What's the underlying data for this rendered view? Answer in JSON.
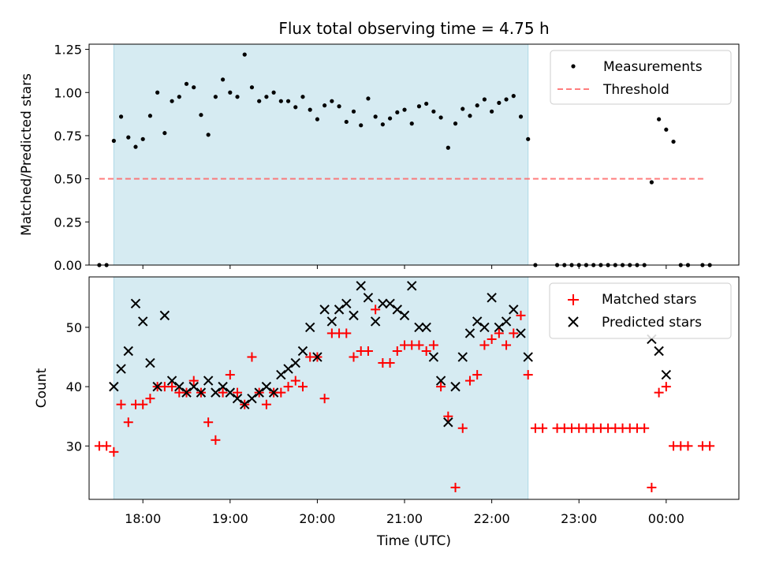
{
  "chart_data": [
    {
      "type": "scatter",
      "title": "Flux total observing time = 4.75 h",
      "ylabel": "Matched/Predicted stars",
      "xlabel": "",
      "xlim": [
        "17:23",
        "00:50"
      ],
      "ylim": [
        0,
        1.28
      ],
      "y_ticks": [
        "0.00",
        "0.25",
        "0.50",
        "0.75",
        "1.00",
        "1.25"
      ],
      "x_ticks": [
        "18:00",
        "19:00",
        "20:00",
        "21:00",
        "22:00",
        "23:00",
        "00:00"
      ],
      "shaded_region": [
        "17:40",
        "22:25"
      ],
      "legend_position": "top-right",
      "threshold": {
        "name": "Threshold",
        "y": 0.5,
        "x_range": [
          "17:30",
          "00:27"
        ],
        "color": "#ff6666"
      },
      "series": [
        {
          "name": "Measurements",
          "color": "#000000",
          "marker": "dot",
          "points": [
            [
              "17:30",
              0.0
            ],
            [
              "17:35",
              0.0
            ],
            [
              "17:40",
              0.72
            ],
            [
              "17:45",
              0.86
            ],
            [
              "17:50",
              0.74
            ],
            [
              "17:55",
              0.685
            ],
            [
              "18:00",
              0.73
            ],
            [
              "18:05",
              0.865
            ],
            [
              "18:10",
              1.0
            ],
            [
              "18:15",
              0.765
            ],
            [
              "18:20",
              0.95
            ],
            [
              "18:25",
              0.975
            ],
            [
              "18:30",
              1.05
            ],
            [
              "18:35",
              1.03
            ],
            [
              "18:40",
              0.87
            ],
            [
              "18:45",
              0.755
            ],
            [
              "18:50",
              0.975
            ],
            [
              "18:55",
              1.075
            ],
            [
              "19:00",
              1.0
            ],
            [
              "19:05",
              0.975
            ],
            [
              "19:10",
              1.22
            ],
            [
              "19:15",
              1.03
            ],
            [
              "19:20",
              0.95
            ],
            [
              "19:25",
              0.975
            ],
            [
              "19:30",
              1.0
            ],
            [
              "19:35",
              0.95
            ],
            [
              "19:40",
              0.95
            ],
            [
              "19:45",
              0.915
            ],
            [
              "19:50",
              0.975
            ],
            [
              "19:55",
              0.9
            ],
            [
              "20:00",
              0.845
            ],
            [
              "20:05",
              0.925
            ],
            [
              "20:10",
              0.95
            ],
            [
              "20:15",
              0.92
            ],
            [
              "20:20",
              0.83
            ],
            [
              "20:25",
              0.89
            ],
            [
              "20:30",
              0.81
            ],
            [
              "20:35",
              0.965
            ],
            [
              "20:40",
              0.86
            ],
            [
              "20:45",
              0.815
            ],
            [
              "20:50",
              0.85
            ],
            [
              "20:55",
              0.885
            ],
            [
              "21:00",
              0.9
            ],
            [
              "21:05",
              0.82
            ],
            [
              "21:10",
              0.92
            ],
            [
              "21:15",
              0.935
            ],
            [
              "21:20",
              0.89
            ],
            [
              "21:25",
              0.855
            ],
            [
              "21:30",
              0.68
            ],
            [
              "21:35",
              0.82
            ],
            [
              "21:40",
              0.905
            ],
            [
              "21:45",
              0.865
            ],
            [
              "21:50",
              0.925
            ],
            [
              "21:55",
              0.96
            ],
            [
              "22:00",
              0.89
            ],
            [
              "22:05",
              0.94
            ],
            [
              "22:10",
              0.96
            ],
            [
              "22:15",
              0.98
            ],
            [
              "22:20",
              0.86
            ],
            [
              "22:25",
              0.73
            ],
            [
              "22:30",
              0.0
            ],
            [
              "22:45",
              0.0
            ],
            [
              "22:50",
              0.0
            ],
            [
              "22:55",
              0.0
            ],
            [
              "23:00",
              0.0
            ],
            [
              "23:05",
              0.0
            ],
            [
              "23:10",
              0.0
            ],
            [
              "23:15",
              0.0
            ],
            [
              "23:20",
              0.0
            ],
            [
              "23:25",
              0.0
            ],
            [
              "23:30",
              0.0
            ],
            [
              "23:35",
              0.0
            ],
            [
              "23:40",
              0.0
            ],
            [
              "23:45",
              0.0
            ],
            [
              "23:50",
              0.48
            ],
            [
              "23:55",
              0.845
            ],
            [
              "00:00",
              0.785
            ],
            [
              "00:05",
              0.715
            ],
            [
              "00:10",
              0.0
            ],
            [
              "00:15",
              0.0
            ],
            [
              "00:25",
              0.0
            ],
            [
              "00:30",
              0.0
            ]
          ]
        }
      ]
    },
    {
      "type": "scatter",
      "title": "",
      "ylabel": "Count",
      "xlabel": "Time (UTC)",
      "xlim": [
        "17:23",
        "00:50"
      ],
      "ylim": [
        21,
        58.5
      ],
      "y_ticks": [
        "30",
        "40",
        "50"
      ],
      "x_ticks": [
        "18:00",
        "19:00",
        "20:00",
        "21:00",
        "22:00",
        "23:00",
        "00:00"
      ],
      "shaded_region": [
        "17:40",
        "22:25"
      ],
      "legend_position": "top-right",
      "series": [
        {
          "name": "Matched stars",
          "color": "#ff0000",
          "marker": "plus",
          "points": [
            [
              "17:30",
              30
            ],
            [
              "17:35",
              30
            ],
            [
              "17:40",
              29
            ],
            [
              "17:45",
              37
            ],
            [
              "17:50",
              34
            ],
            [
              "17:55",
              37
            ],
            [
              "18:00",
              37
            ],
            [
              "18:05",
              38
            ],
            [
              "18:10",
              40
            ],
            [
              "18:15",
              40
            ],
            [
              "18:20",
              40
            ],
            [
              "18:25",
              39
            ],
            [
              "18:30",
              39
            ],
            [
              "18:35",
              41
            ],
            [
              "18:40",
              39
            ],
            [
              "18:45",
              34
            ],
            [
              "18:50",
              31
            ],
            [
              "18:55",
              39
            ],
            [
              "19:00",
              42
            ],
            [
              "19:05",
              39
            ],
            [
              "19:10",
              37
            ],
            [
              "19:15",
              45
            ],
            [
              "19:20",
              39
            ],
            [
              "19:25",
              37
            ],
            [
              "19:30",
              39
            ],
            [
              "19:35",
              39
            ],
            [
              "19:40",
              40
            ],
            [
              "19:45",
              41
            ],
            [
              "19:50",
              40
            ],
            [
              "19:55",
              45
            ],
            [
              "20:00",
              45
            ],
            [
              "20:05",
              38
            ],
            [
              "20:10",
              49
            ],
            [
              "20:15",
              49
            ],
            [
              "20:20",
              49
            ],
            [
              "20:25",
              45
            ],
            [
              "20:30",
              46
            ],
            [
              "20:35",
              46
            ],
            [
              "20:40",
              53
            ],
            [
              "20:45",
              44
            ],
            [
              "20:50",
              44
            ],
            [
              "20:55",
              46
            ],
            [
              "21:00",
              47
            ],
            [
              "21:05",
              47
            ],
            [
              "21:10",
              47
            ],
            [
              "21:15",
              46
            ],
            [
              "21:20",
              47
            ],
            [
              "21:25",
              40
            ],
            [
              "21:30",
              35
            ],
            [
              "21:35",
              23
            ],
            [
              "21:40",
              33
            ],
            [
              "21:45",
              41
            ],
            [
              "21:50",
              42
            ],
            [
              "21:55",
              47
            ],
            [
              "22:00",
              48
            ],
            [
              "22:05",
              49
            ],
            [
              "22:10",
              47
            ],
            [
              "22:15",
              49
            ],
            [
              "22:20",
              52
            ],
            [
              "22:25",
              42
            ],
            [
              "22:30",
              33
            ],
            [
              "22:35",
              33
            ],
            [
              "22:45",
              33
            ],
            [
              "22:50",
              33
            ],
            [
              "22:55",
              33
            ],
            [
              "23:00",
              33
            ],
            [
              "23:05",
              33
            ],
            [
              "23:10",
              33
            ],
            [
              "23:15",
              33
            ],
            [
              "23:20",
              33
            ],
            [
              "23:25",
              33
            ],
            [
              "23:30",
              33
            ],
            [
              "23:35",
              33
            ],
            [
              "23:40",
              33
            ],
            [
              "23:45",
              33
            ],
            [
              "23:50",
              23
            ],
            [
              "23:55",
              39
            ],
            [
              "00:00",
              40
            ],
            [
              "00:05",
              30
            ],
            [
              "00:10",
              30
            ],
            [
              "00:15",
              30
            ],
            [
              "00:25",
              30
            ],
            [
              "00:30",
              30
            ]
          ]
        },
        {
          "name": "Predicted stars",
          "color": "#000000",
          "marker": "x",
          "points": [
            [
              "17:40",
              40
            ],
            [
              "17:45",
              43
            ],
            [
              "17:50",
              46
            ],
            [
              "17:55",
              54
            ],
            [
              "18:00",
              51
            ],
            [
              "18:05",
              44
            ],
            [
              "18:10",
              40
            ],
            [
              "18:15",
              52
            ],
            [
              "18:20",
              41
            ],
            [
              "18:25",
              40
            ],
            [
              "18:30",
              39
            ],
            [
              "18:35",
              40
            ],
            [
              "18:40",
              39
            ],
            [
              "18:45",
              41
            ],
            [
              "18:50",
              39
            ],
            [
              "18:55",
              40
            ],
            [
              "19:00",
              39
            ],
            [
              "19:05",
              38
            ],
            [
              "19:10",
              37
            ],
            [
              "19:15",
              38
            ],
            [
              "19:20",
              39
            ],
            [
              "19:25",
              40
            ],
            [
              "19:30",
              39
            ],
            [
              "19:35",
              42
            ],
            [
              "19:40",
              43
            ],
            [
              "19:45",
              44
            ],
            [
              "19:50",
              46
            ],
            [
              "19:55",
              50
            ],
            [
              "20:00",
              45
            ],
            [
              "20:05",
              53
            ],
            [
              "20:10",
              51
            ],
            [
              "20:15",
              53
            ],
            [
              "20:20",
              54
            ],
            [
              "20:25",
              52
            ],
            [
              "20:30",
              57
            ],
            [
              "20:35",
              55
            ],
            [
              "20:40",
              51
            ],
            [
              "20:45",
              54
            ],
            [
              "20:50",
              54
            ],
            [
              "20:55",
              53
            ],
            [
              "21:00",
              52
            ],
            [
              "21:05",
              57
            ],
            [
              "21:10",
              50
            ],
            [
              "21:15",
              50
            ],
            [
              "21:20",
              45
            ],
            [
              "21:25",
              41
            ],
            [
              "21:30",
              34
            ],
            [
              "21:35",
              40
            ],
            [
              "21:40",
              45
            ],
            [
              "21:45",
              49
            ],
            [
              "21:50",
              51
            ],
            [
              "21:55",
              50
            ],
            [
              "22:00",
              55
            ],
            [
              "22:05",
              50
            ],
            [
              "22:10",
              51
            ],
            [
              "22:15",
              53
            ],
            [
              "22:20",
              49
            ],
            [
              "22:25",
              45
            ],
            [
              "23:50",
              48
            ],
            [
              "23:55",
              46
            ],
            [
              "00:00",
              42
            ]
          ]
        }
      ]
    }
  ]
}
